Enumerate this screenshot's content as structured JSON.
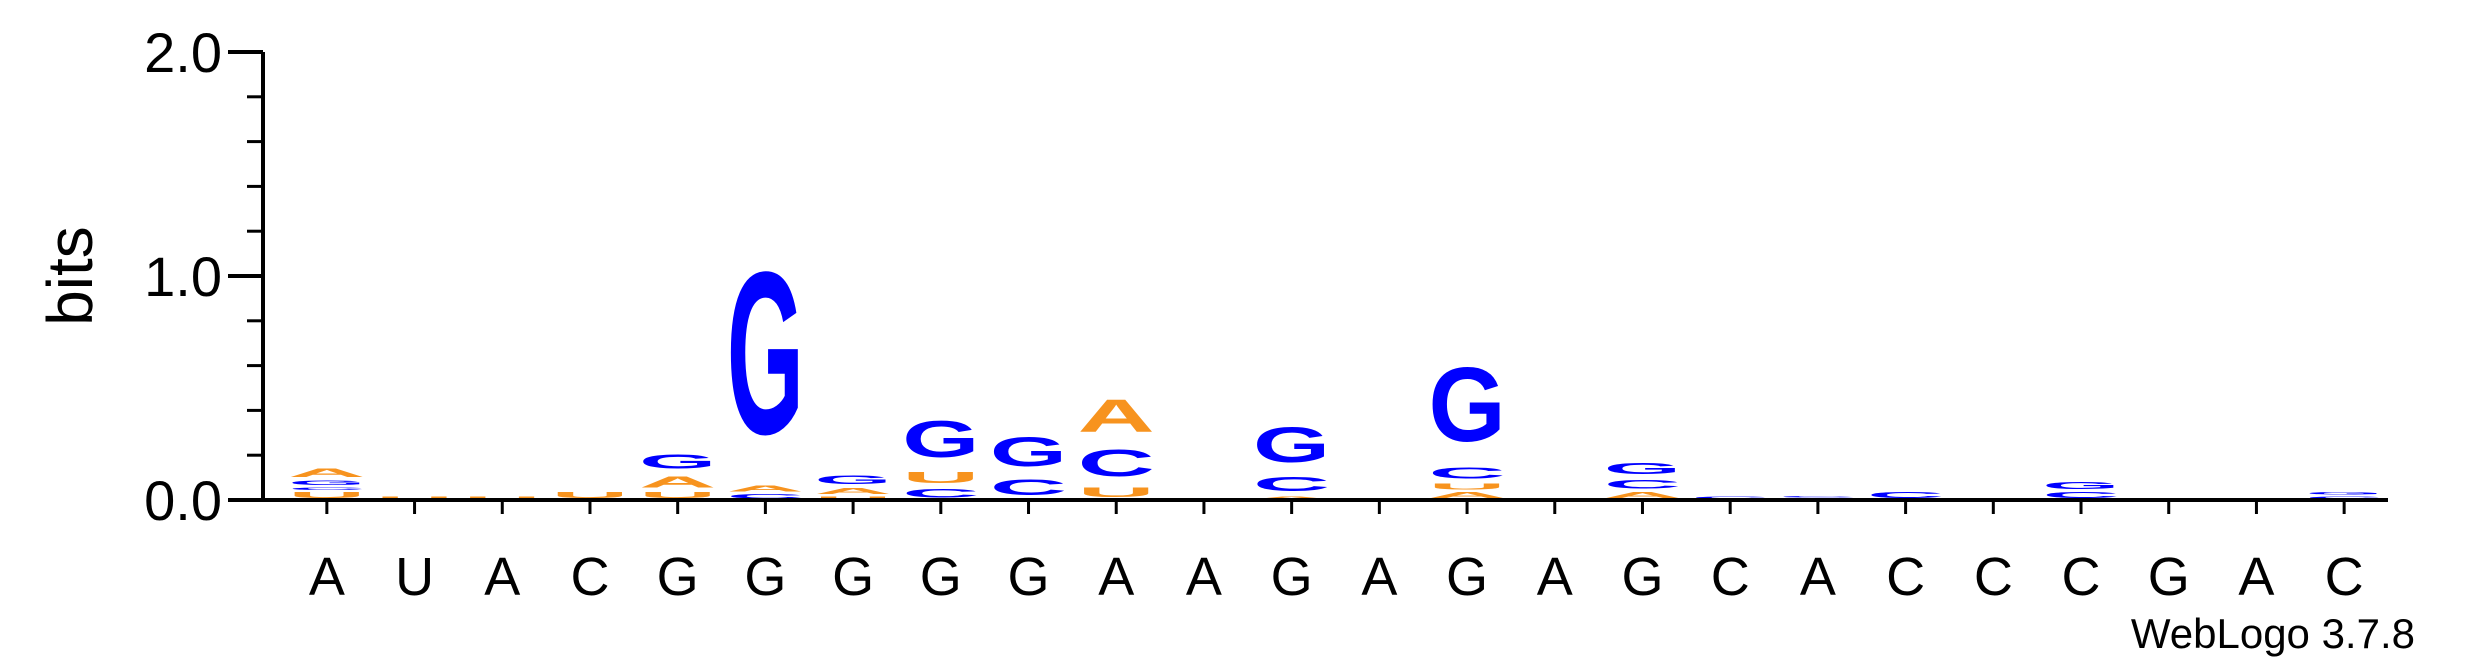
{
  "chart_data": {
    "type": "sequence-logo",
    "ylabel": "bits",
    "ylim": [
      0,
      2.0
    ],
    "yticks": [
      "0.0",
      "1.0",
      "2.0"
    ],
    "credit": "WebLogo 3.7.8",
    "colors": {
      "A": "#f7931e",
      "U": "#f7931e",
      "G": "#0000ff",
      "C": "#0000ff"
    },
    "positions": [
      {
        "label": "A",
        "stack": [
          {
            "letter": "U",
            "bits": 0.04
          },
          {
            "letter": "C",
            "bits": 0.02
          },
          {
            "letter": "G",
            "bits": 0.03
          },
          {
            "letter": "A",
            "bits": 0.06
          }
        ]
      },
      {
        "label": "U",
        "stack": [
          {
            "letter": "U",
            "bits": 0.02
          }
        ]
      },
      {
        "label": "A",
        "stack": [
          {
            "letter": "U",
            "bits": 0.02
          }
        ]
      },
      {
        "label": "C",
        "stack": [
          {
            "letter": "U",
            "bits": 0.04
          }
        ]
      },
      {
        "label": "G",
        "stack": [
          {
            "letter": "U",
            "bits": 0.04
          },
          {
            "letter": "A",
            "bits": 0.08
          },
          {
            "letter": "G",
            "bits": 0.1
          }
        ]
      },
      {
        "label": "G",
        "stack": [
          {
            "letter": "C",
            "bits": 0.03
          },
          {
            "letter": "A",
            "bits": 0.04
          },
          {
            "letter": "G",
            "bits": 1.16
          }
        ]
      },
      {
        "label": "G",
        "stack": [
          {
            "letter": "U",
            "bits": 0.02
          },
          {
            "letter": "A",
            "bits": 0.04
          },
          {
            "letter": "G",
            "bits": 0.06
          }
        ]
      },
      {
        "label": "G",
        "stack": [
          {
            "letter": "C",
            "bits": 0.06
          },
          {
            "letter": "U",
            "bits": 0.08
          },
          {
            "letter": "G",
            "bits": 0.26
          }
        ]
      },
      {
        "label": "G",
        "stack": [
          {
            "letter": "C",
            "bits": 0.11
          },
          {
            "letter": "G",
            "bits": 0.21
          }
        ]
      },
      {
        "label": "A",
        "stack": [
          {
            "letter": "U",
            "bits": 0.07
          },
          {
            "letter": "C",
            "bits": 0.19
          },
          {
            "letter": "A",
            "bits": 0.23
          }
        ]
      },
      {
        "label": "A",
        "stack": []
      },
      {
        "label": "G",
        "stack": [
          {
            "letter": "A",
            "bits": 0.02
          },
          {
            "letter": "C",
            "bits": 0.1
          },
          {
            "letter": "G",
            "bits": 0.25
          }
        ]
      },
      {
        "label": "A",
        "stack": []
      },
      {
        "label": "G",
        "stack": [
          {
            "letter": "A",
            "bits": 0.04
          },
          {
            "letter": "U",
            "bits": 0.04
          },
          {
            "letter": "C",
            "bits": 0.08
          },
          {
            "letter": "G",
            "bits": 0.53
          }
        ]
      },
      {
        "label": "A",
        "stack": []
      },
      {
        "label": "G",
        "stack": [
          {
            "letter": "A",
            "bits": 0.04
          },
          {
            "letter": "C",
            "bits": 0.06
          },
          {
            "letter": "G",
            "bits": 0.08
          }
        ]
      },
      {
        "label": "C",
        "stack": [
          {
            "letter": "C",
            "bits": 0.02
          }
        ]
      },
      {
        "label": "A",
        "stack": [
          {
            "letter": "A",
            "bits": 0.01
          },
          {
            "letter": "C",
            "bits": 0.01
          }
        ]
      },
      {
        "label": "C",
        "stack": [
          {
            "letter": "C",
            "bits": 0.04
          }
        ]
      },
      {
        "label": "C",
        "stack": []
      },
      {
        "label": "C",
        "stack": [
          {
            "letter": "C",
            "bits": 0.04
          },
          {
            "letter": "G",
            "bits": 0.05
          }
        ]
      },
      {
        "label": "G",
        "stack": []
      },
      {
        "label": "A",
        "stack": []
      },
      {
        "label": "C",
        "stack": [
          {
            "letter": "C",
            "bits": 0.02
          },
          {
            "letter": "G",
            "bits": 0.02
          }
        ]
      }
    ]
  }
}
